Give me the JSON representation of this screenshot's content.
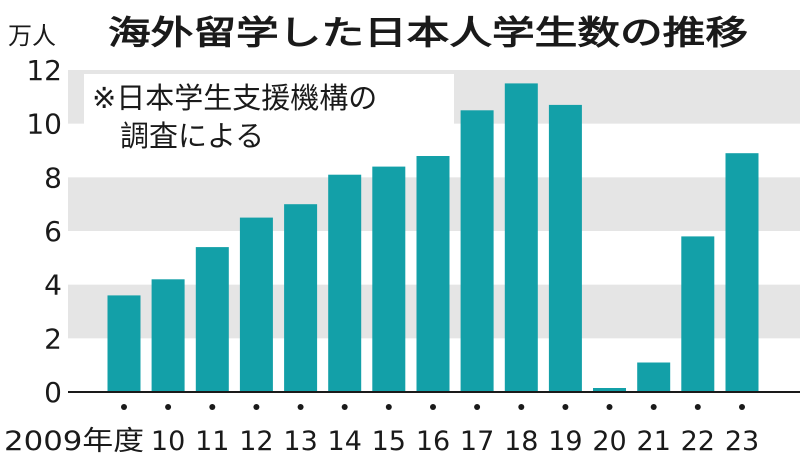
{
  "chart_data": {
    "type": "bar",
    "title": "海外留学した日本人学生数の推移",
    "ylabel": "万人",
    "note_lines": [
      "※日本学生支援機構の",
      "調査による"
    ],
    "categories": [
      "2009年度",
      "10",
      "11",
      "12",
      "13",
      "14",
      "15",
      "16",
      "17",
      "18",
      "19",
      "20",
      "21",
      "22",
      "23"
    ],
    "values": [
      3.6,
      4.2,
      5.4,
      6.5,
      7.0,
      8.1,
      8.4,
      9.7,
      10.5,
      11.5,
      10.7,
      0.15,
      1.1,
      5.8,
      8.9
    ],
    "ylim": [
      0,
      12
    ],
    "yticks": [
      "0",
      "2",
      "4",
      "6",
      "8",
      "10",
      "12"
    ],
    "colors": {
      "bar": "#13a0a8",
      "band": "#e5e5e5",
      "text": "#1a1a1a"
    },
    "grid": "alternating horizontal bands"
  }
}
